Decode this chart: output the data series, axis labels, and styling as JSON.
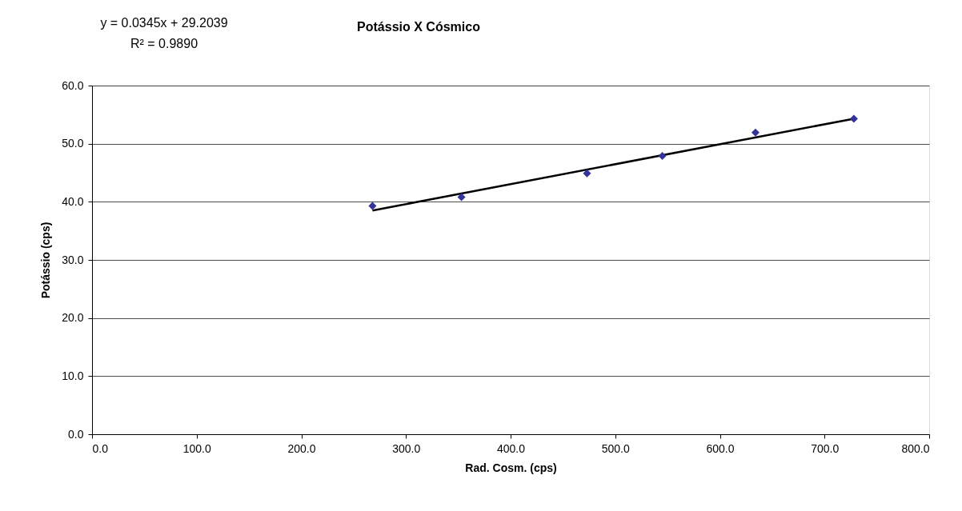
{
  "chart_data": {
    "type": "scatter",
    "title": "Potássio X Cósmico",
    "xlabel": "Rad. Cosm. (cps)",
    "ylabel": "Potássio (cps)",
    "annotations": [
      "y = 0.0345x + 29.2039",
      "R² = 0.9890"
    ],
    "xlim": [
      0,
      800
    ],
    "xticks": [
      {
        "value": 0,
        "label": "0.0"
      },
      {
        "value": 100,
        "label": "100.0"
      },
      {
        "value": 200,
        "label": "200.0"
      },
      {
        "value": 300,
        "label": "300.0"
      },
      {
        "value": 400,
        "label": "400.0"
      },
      {
        "value": 500,
        "label": "500.0"
      },
      {
        "value": 600,
        "label": "600.0"
      },
      {
        "value": 700,
        "label": "700.0"
      },
      {
        "value": 800,
        "label": "800.0"
      }
    ],
    "ylim": [
      0,
      60
    ],
    "yticks": [
      {
        "value": 0,
        "label": "0.0"
      },
      {
        "value": 10,
        "label": "10.0"
      },
      {
        "value": 20,
        "label": "20.0"
      },
      {
        "value": 30,
        "label": "30.0"
      },
      {
        "value": 40,
        "label": "40.0"
      },
      {
        "value": 50,
        "label": "50.0"
      },
      {
        "value": 60,
        "label": "60.0"
      }
    ],
    "grid": "y",
    "series": [
      {
        "color": "#333399",
        "marker": "diamond",
        "x": [
          268,
          353,
          473,
          545,
          634,
          728
        ],
        "values": [
          39.3,
          40.8,
          44.9,
          47.9,
          51.9,
          54.3
        ]
      },
      {
        "type": "line",
        "color": "#000000",
        "x": [
          268,
          728
        ],
        "values": [
          38.5,
          54.3
        ],
        "line_style": "solid",
        "marker": "none"
      }
    ]
  }
}
